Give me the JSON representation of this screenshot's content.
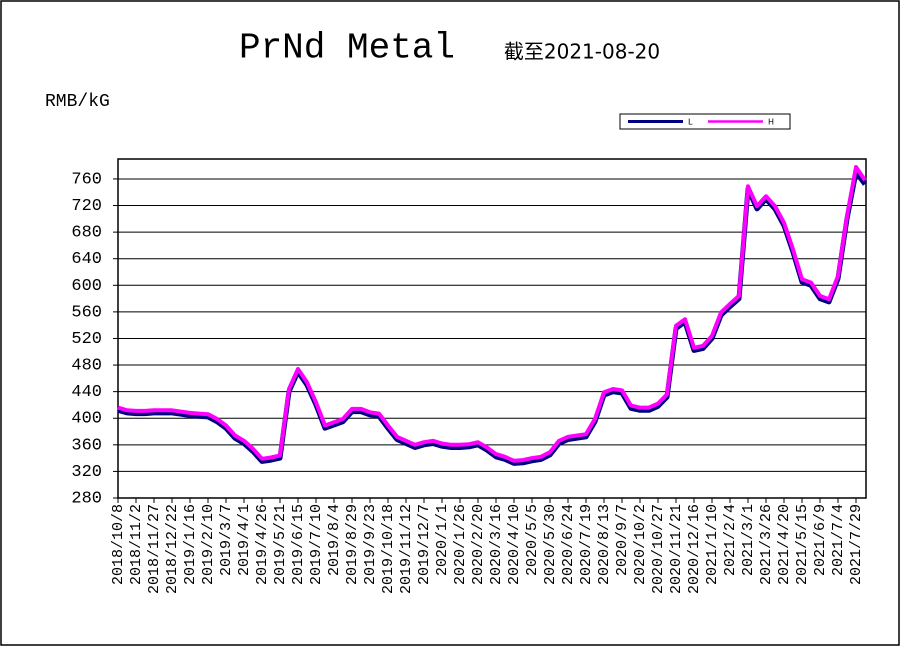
{
  "chart_data": {
    "type": "line",
    "title": "PrNd Metal",
    "subtitle": "截至2021-08-20",
    "y_label": "RMB/kG",
    "categories": [
      "2018/10/8",
      null,
      "2018/11/2",
      null,
      "2018/11/27",
      null,
      "2018/12/22",
      null,
      "2019/1/16",
      null,
      "2019/2/10",
      null,
      "2019/3/7",
      null,
      "2019/4/1",
      null,
      "2019/4/26",
      null,
      "2019/5/21",
      null,
      "2019/6/15",
      null,
      "2019/7/10",
      null,
      "2019/8/4",
      null,
      "2019/8/29",
      null,
      "2019/9/23",
      null,
      "2019/10/18",
      null,
      "2019/11/12",
      null,
      "2019/12/7",
      null,
      "2020/1/1",
      null,
      "2020/1/26",
      null,
      "2020/2/20",
      null,
      "2020/3/16",
      null,
      "2020/4/10",
      null,
      "2020/5/5",
      null,
      "2020/5/30",
      null,
      "2020/6/24",
      null,
      "2020/7/19",
      null,
      "2020/8/13",
      null,
      "2020/9/7",
      null,
      "2020/10/2",
      null,
      "2020/10/27",
      null,
      "2020/11/21",
      null,
      "2020/12/16",
      null,
      "2021/1/10",
      null,
      "2021/2/4",
      null,
      "2021/3/1",
      null,
      "2021/3/26",
      null,
      "2021/4/20",
      null,
      "2021/5/15",
      null,
      "2021/6/9",
      null,
      "2021/7/4",
      null,
      "2021/7/29",
      null
    ],
    "series": [
      {
        "name": "L",
        "color": "#000080",
        "values": [
          412,
          408,
          407,
          407,
          408,
          408,
          408,
          406,
          404,
          403,
          402,
          395,
          385,
          370,
          362,
          350,
          335,
          337,
          340,
          440,
          470,
          450,
          420,
          385,
          390,
          395,
          410,
          410,
          405,
          403,
          385,
          368,
          362,
          356,
          360,
          362,
          358,
          356,
          356,
          357,
          360,
          352,
          342,
          338,
          332,
          333,
          336,
          338,
          345,
          362,
          368,
          370,
          372,
          395,
          435,
          440,
          438,
          415,
          412,
          412,
          418,
          432,
          535,
          545,
          502,
          505,
          520,
          555,
          568,
          580,
          745,
          715,
          730,
          715,
          690,
          650,
          605,
          600,
          580,
          575,
          610,
          700,
          770,
          752
        ]
      },
      {
        "name": "H",
        "color": "#ff00ff",
        "values": [
          416,
          412,
          411,
          411,
          412,
          412,
          412,
          410,
          408,
          407,
          406,
          399,
          389,
          374,
          366,
          354,
          339,
          341,
          344,
          444,
          474,
          454,
          424,
          389,
          394,
          399,
          414,
          414,
          409,
          407,
          389,
          372,
          366,
          360,
          364,
          366,
          362,
          360,
          360,
          361,
          364,
          356,
          346,
          342,
          336,
          337,
          340,
          342,
          349,
          366,
          372,
          374,
          376,
          399,
          439,
          444,
          442,
          419,
          416,
          416,
          422,
          436,
          539,
          549,
          506,
          509,
          524,
          559,
          572,
          584,
          749,
          719,
          734,
          719,
          694,
          654,
          609,
          604,
          584,
          579,
          614,
          704,
          778,
          758
        ]
      }
    ],
    "ylim": [
      280,
      790
    ],
    "yticks": [
      280,
      320,
      360,
      400,
      440,
      480,
      520,
      560,
      600,
      640,
      680,
      720,
      760
    ],
    "grid": true,
    "legend": "top-right"
  }
}
